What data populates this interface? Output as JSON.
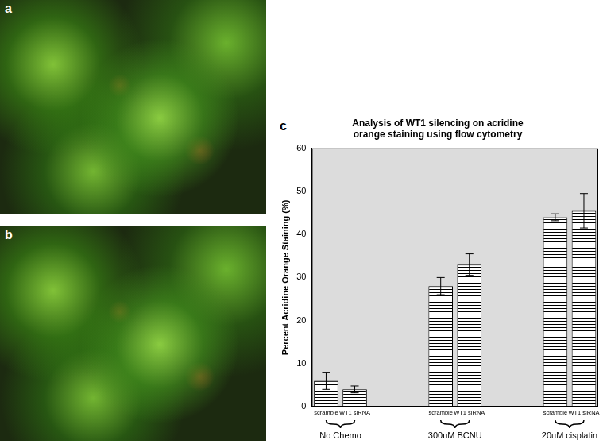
{
  "panel_labels": [
    "a",
    "b",
    "c"
  ],
  "chart_data": {
    "type": "bar",
    "title": [
      "Analysis of WT1 silencing on acridine",
      "orange staining using flow cytometry"
    ],
    "y_label": "Percent Acridine Orange Staining (%)",
    "categories": [
      "scramble",
      "WT1 siRNA",
      null,
      null,
      "scramble",
      "WT1 siRNA",
      null,
      null,
      "scramble",
      "WT1 siRNA"
    ],
    "values": [
      6,
      4,
      null,
      null,
      28,
      33,
      null,
      null,
      44,
      45.5
    ],
    "errors": [
      2,
      0.8,
      null,
      null,
      2,
      2.5,
      null,
      null,
      0.8,
      4
    ],
    "group_labels": [
      "No Chemo",
      "300uM BCNU",
      "20uM cisplatin"
    ],
    "color": "#000000",
    "ylim": [
      0,
      60
    ],
    "yticks": [
      0,
      10,
      20,
      30,
      40,
      50,
      60
    ],
    "grid": false
  }
}
